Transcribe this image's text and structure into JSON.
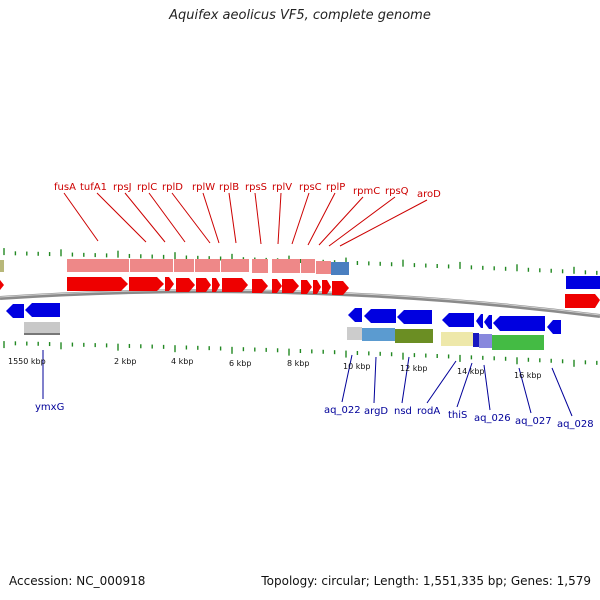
{
  "title": "Aquifex aeolicus VF5, complete genome",
  "accession": "Accession: NC_000918",
  "topology": "Topology: circular; Length: 1,551,335 bp; Genes: 1,579",
  "colors": {
    "top_label": "#cc0000",
    "bottom_label": "#000099",
    "tick": "#228822",
    "backbone": "#888888"
  },
  "top_labels": [
    "fusA",
    "tufA1",
    "rpsJ",
    "rplC",
    "rplD",
    "rplW",
    "rplB",
    "rpsS",
    "rplV",
    "rpsC",
    "rplP",
    "rpmC",
    "rpsQ",
    "aroD"
  ],
  "bottom_labels": [
    "ymxG",
    "aq_022",
    "argD",
    "nsd",
    "rodA",
    "thiS",
    "aq_026",
    "aq_027",
    "aq_028"
  ],
  "position_labels": [
    "1550 kbp",
    "2 kbp",
    "4 kbp",
    "6 kbp",
    "8 kbp",
    "10 kbp",
    "12 kbp",
    "14 kbp",
    "16 kbp"
  ]
}
